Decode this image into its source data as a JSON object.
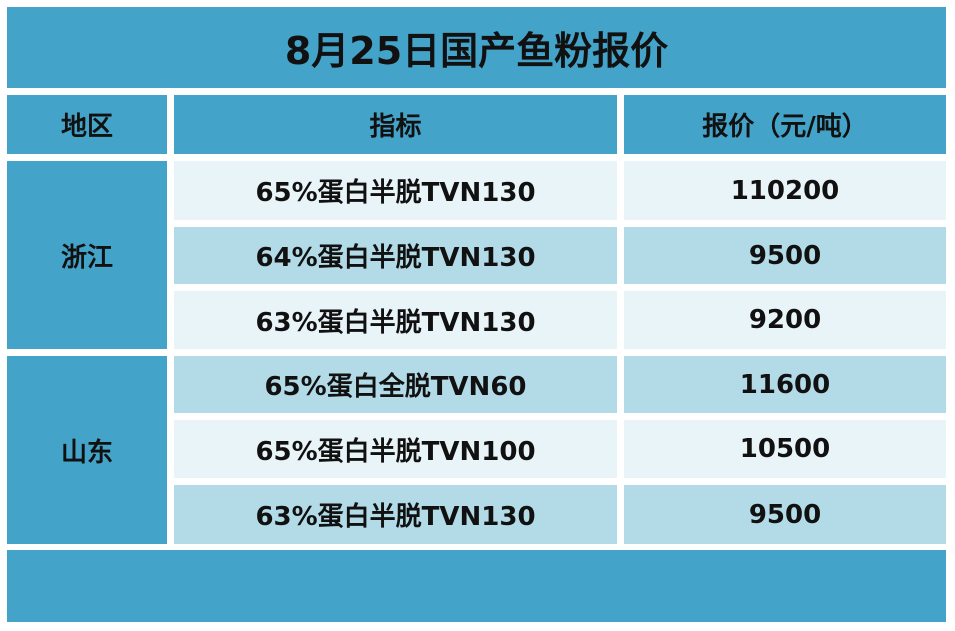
{
  "title": "8月25日国产鱼粉报价",
  "headers": {
    "region": "地区",
    "spec": "指标",
    "price": "报价（元/吨）"
  },
  "groups": [
    {
      "region": "浙江"
    },
    {
      "region": "山东"
    }
  ],
  "rows": [
    {
      "spec": "65%蛋白半脱TVN130",
      "price": "110200"
    },
    {
      "spec": "64%蛋白半脱TVN130",
      "price": "9500"
    },
    {
      "spec": "63%蛋白半脱TVN130",
      "price": "9200"
    },
    {
      "spec": "65%蛋白全脱TVN60",
      "price": "11600"
    },
    {
      "spec": "65%蛋白半脱TVN100",
      "price": "10500"
    },
    {
      "spec": "63%蛋白半脱TVN130",
      "price": "9500"
    }
  ],
  "colors": {
    "header": "#44a3c9",
    "row_light": "#e8f4f8",
    "row_mid": "#b2dbe7"
  }
}
